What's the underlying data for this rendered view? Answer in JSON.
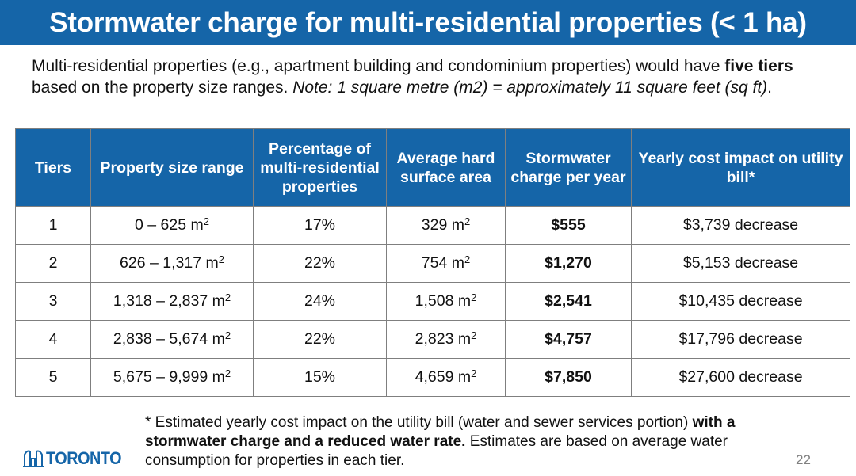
{
  "title": "Stormwater charge for multi-residential properties (< 1 ha)",
  "intro": {
    "part1": "Multi-residential properties (e.g., apartment building and condominium properties) would have ",
    "bold": "five tiers",
    "part2": " based on the property size ranges. ",
    "italic": "Note: 1 square metre (m2) = approximately 11 square feet (sq ft)",
    "end": "."
  },
  "table": {
    "headers": [
      "Tiers",
      "Property size range",
      "Percentage of multi-residential properties",
      "Average hard surface area",
      "Stormwater charge per year",
      "Yearly cost impact on utility bill*"
    ],
    "unit": "m",
    "unit_sup": "2",
    "rows": [
      {
        "tier": "1",
        "range": "0 – 625 ",
        "percent": "17%",
        "area": "329 ",
        "charge": "$555",
        "impact": "$3,739 decrease"
      },
      {
        "tier": "2",
        "range": "626 – 1,317 ",
        "percent": "22%",
        "area": "754 ",
        "charge": "$1,270",
        "impact": "$5,153 decrease"
      },
      {
        "tier": "3",
        "range": "1,318 – 2,837 ",
        "percent": "24%",
        "area": "1,508 ",
        "charge": "$2,541",
        "impact": "$10,435 decrease"
      },
      {
        "tier": "4",
        "range": "2,838 – 5,674 ",
        "percent": "22%",
        "area": "2,823 ",
        "charge": "$4,757",
        "impact": "$17,796 decrease"
      },
      {
        "tier": "5",
        "range": "5,675 – 9,999 ",
        "percent": "15%",
        "area": "4,659 ",
        "charge": "$7,850",
        "impact": "$27,600 decrease"
      }
    ]
  },
  "footnote": {
    "part1": "* Estimated yearly cost impact on the utility bill (water and sewer services portion) ",
    "bold": "with a stormwater charge and a reduced water rate.",
    "part2": " Estimates are based on average water consumption for properties in each tier."
  },
  "logo": {
    "text": "TORONTO"
  },
  "page_number": "22",
  "colors": {
    "brand_blue": "#1565a8"
  }
}
